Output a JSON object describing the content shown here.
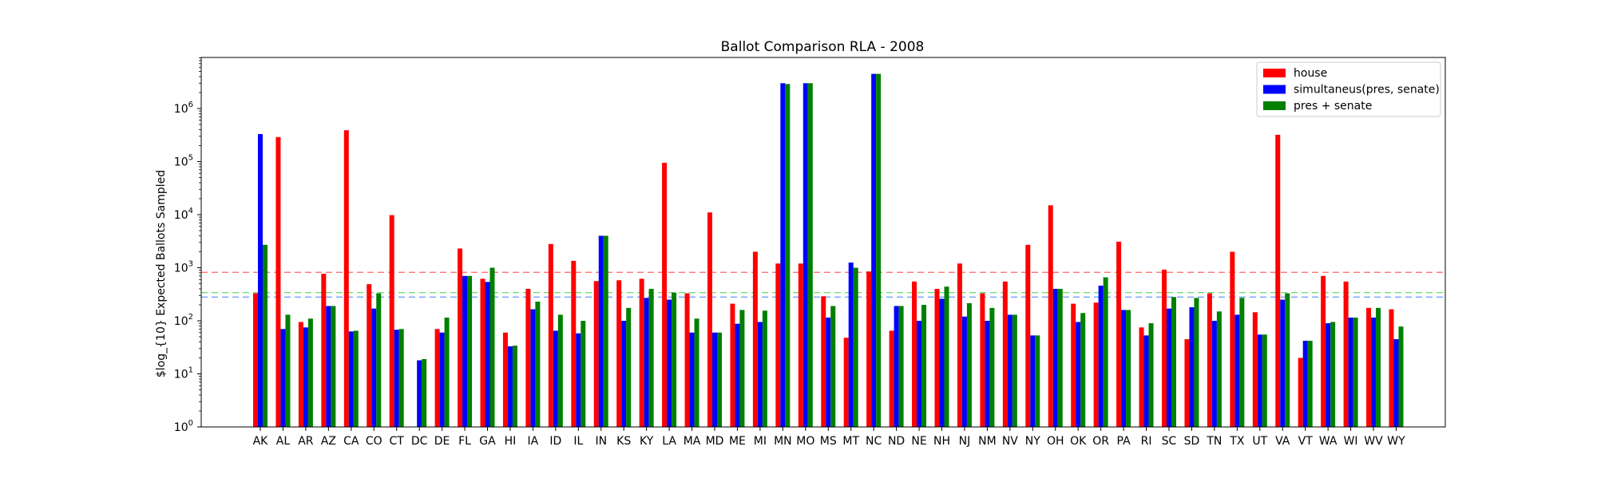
{
  "chart_data": {
    "type": "bar",
    "title": "Ballot Comparison RLA - 2008",
    "xlabel": "",
    "ylabel": "$log_{10} Expected Ballots Sampled",
    "yscale": "log",
    "ylim": [
      1,
      9000000
    ],
    "y_tick_labels": [
      {
        "base": "10",
        "exp": "0",
        "value": 1
      },
      {
        "base": "10",
        "exp": "1",
        "value": 10
      },
      {
        "base": "10",
        "exp": "2",
        "value": 100
      },
      {
        "base": "10",
        "exp": "3",
        "value": 1000
      },
      {
        "base": "10",
        "exp": "4",
        "value": 10000
      },
      {
        "base": "10",
        "exp": "5",
        "value": 100000
      },
      {
        "base": "10",
        "exp": "6",
        "value": 1000000
      }
    ],
    "grid": false,
    "legend_position": "top-right",
    "categories": [
      "AK",
      "AL",
      "AR",
      "AZ",
      "CA",
      "CO",
      "CT",
      "DC",
      "DE",
      "FL",
      "GA",
      "HI",
      "IA",
      "ID",
      "IL",
      "IN",
      "KS",
      "KY",
      "LA",
      "MA",
      "MD",
      "ME",
      "MI",
      "MN",
      "MO",
      "MS",
      "MT",
      "NC",
      "ND",
      "NE",
      "NH",
      "NJ",
      "NM",
      "NV",
      "NY",
      "OH",
      "OK",
      "OR",
      "PA",
      "RI",
      "SC",
      "SD",
      "TN",
      "TX",
      "UT",
      "VA",
      "VT",
      "WA",
      "WI",
      "WV",
      "WY"
    ],
    "series": [
      {
        "name": "house",
        "color": "#ff0000",
        "values": [
          330,
          290000,
          95,
          770,
          390000,
          490,
          9800,
          null,
          70,
          2300,
          620,
          60,
          400,
          2800,
          1350,
          560,
          580,
          620,
          95000,
          330,
          11000,
          210,
          2000,
          1200,
          1200,
          290,
          48,
          850,
          65,
          550,
          400,
          1200,
          330,
          550,
          2700,
          15000,
          210,
          220,
          3100,
          75,
          920,
          45,
          330,
          2000,
          145,
          320000,
          20,
          700,
          550,
          175,
          165
        ]
      },
      {
        "name": "simultaneus(pres, senate)",
        "color": "#0000ff",
        "values": [
          330000,
          70,
          75,
          190,
          63,
          170,
          68,
          18,
          60,
          700,
          540,
          33,
          165,
          65,
          58,
          4000,
          100,
          270,
          250,
          60,
          60,
          88,
          95,
          3000000,
          3000000,
          115,
          1250,
          4500000,
          190,
          100,
          260,
          120,
          100,
          130,
          53,
          400,
          95,
          460,
          160,
          53,
          170,
          180,
          100,
          130,
          55,
          250,
          42,
          90,
          115,
          115,
          45
        ]
      },
      {
        "name": "pres + senate",
        "color": "#008000",
        "values": [
          2700,
          130,
          110,
          190,
          65,
          330,
          70,
          19,
          115,
          700,
          1000,
          34,
          230,
          130,
          100,
          4000,
          175,
          400,
          340,
          110,
          60,
          160,
          155,
          2900000,
          3000000,
          190,
          1000,
          4500000,
          190,
          200,
          440,
          215,
          175,
          130,
          53,
          400,
          140,
          660,
          160,
          90,
          280,
          270,
          150,
          270,
          55,
          330,
          42,
          95,
          115,
          175,
          78
        ]
      }
    ],
    "reference_lines": [
      {
        "value": 820,
        "color": "#ff6666",
        "style": "dashed"
      },
      {
        "value": 340,
        "color": "#66dd66",
        "style": "dashed"
      },
      {
        "value": 280,
        "color": "#6699ff",
        "style": "dashed"
      }
    ]
  }
}
